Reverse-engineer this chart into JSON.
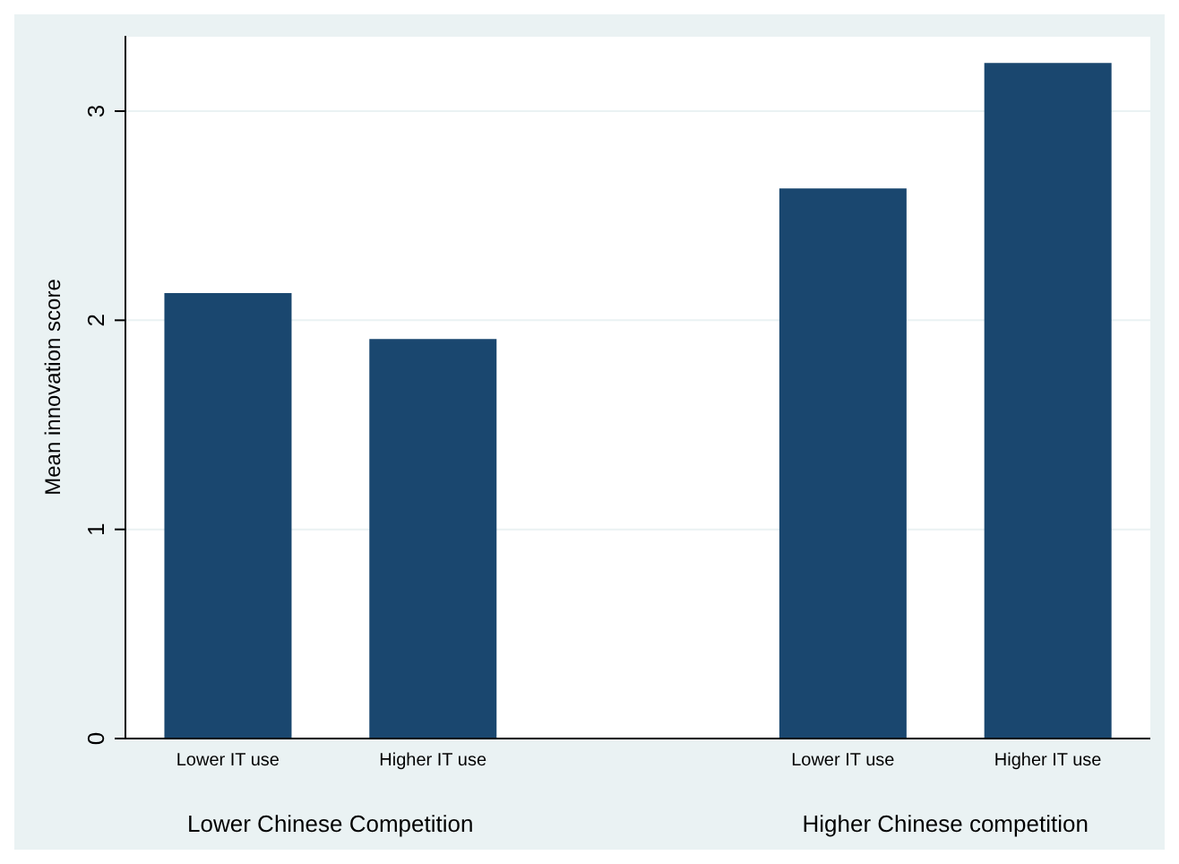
{
  "chart_data": {
    "type": "bar",
    "categories": [
      "Lower IT use",
      "Higher IT use",
      null,
      "Lower IT use",
      "Higher IT use"
    ],
    "values": [
      2.13,
      1.91,
      null,
      2.63,
      3.23
    ],
    "color": "#1a476f",
    "ylabel": "Mean innovation score",
    "ylim": [
      0,
      3.36
    ],
    "yticks": [
      0,
      1,
      2,
      3
    ],
    "grid": "y",
    "annotations": [
      "Lower Chinese Competition",
      "Higher Chinese competition"
    ]
  }
}
